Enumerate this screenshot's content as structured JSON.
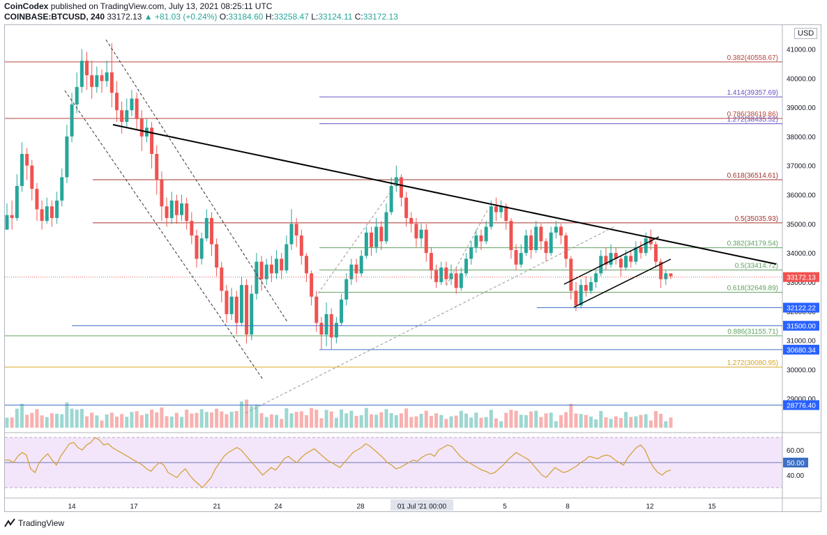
{
  "header": {
    "publisher": "CoinCodex",
    "published_text": "published on TradingView.com, July 13, 2021 08:25:11 UTC",
    "symbol": "COINBASE:BTCUSD, 240",
    "last": "33172.13",
    "change": "▲ +81.03 (+0.24%)",
    "o_label": "O:",
    "o": "33184.60",
    "h_label": "H:",
    "h": "33258.47",
    "l_label": "L:",
    "l": "33124.11",
    "c_label": "C:",
    "c": "33172.13"
  },
  "currency_label": "USD",
  "footer": {
    "brand": "TradingView"
  },
  "colors": {
    "up": "#26a69a",
    "down": "#ef5350",
    "rsi_line": "#d4a13a",
    "rsi_bg": "#f3e6fb"
  },
  "chart_data": {
    "type": "line",
    "title": "",
    "ylim": [
      28000,
      41800
    ],
    "x_ticks": [
      "14",
      "17",
      "21",
      "24",
      "28",
      "01 Jul '21  00:00",
      "5",
      "8",
      "12",
      "15"
    ],
    "y_ticks": [
      "41000.00",
      "40000.00",
      "39000.00",
      "38000.00",
      "37000.00",
      "36000.00",
      "35000.00",
      "34000.00",
      "33000.00",
      "32000.00",
      "31000.00",
      "30000.00",
      "29000.00"
    ],
    "price_labels": [
      {
        "text": "33172.13",
        "value": 33172.13,
        "style": "last"
      },
      {
        "text": "32122.22",
        "value": 32122.22,
        "style": "blue"
      },
      {
        "text": "31500.00",
        "value": 31500.0,
        "style": "blue"
      },
      {
        "text": "30680.34",
        "value": 30680.34,
        "style": "blue"
      },
      {
        "text": "28776.40",
        "value": 28776.4,
        "style": "blue"
      }
    ],
    "fib_levels": [
      {
        "label": "0.382(40558.67)",
        "value": 40558.67,
        "color": "#b5443a"
      },
      {
        "label": "1.414(39357.69)",
        "value": 39357.69,
        "color": "#6a4fc2"
      },
      {
        "label": "0.786(38619.86)",
        "value": 38619.86,
        "color": "#b5443a"
      },
      {
        "label": "1.272(38435.52)",
        "value": 38435.52,
        "color": "#6a4fc2"
      },
      {
        "label": "0.618(36514.61)",
        "value": 36514.61,
        "color": "#a0302a"
      },
      {
        "label": "0.5(35035.93)",
        "value": 35035.93,
        "color": "#a0302a"
      },
      {
        "label": "0.382(34179.54)",
        "value": 34179.54,
        "color": "#5fa05f"
      },
      {
        "label": "0.5(33414.72)",
        "value": 33414.72,
        "color": "#5fa05f"
      },
      {
        "label": "0.618(32649.89)",
        "value": 32649.89,
        "color": "#5fa05f"
      },
      {
        "label": "0.886(31155.71)",
        "value": 31155.71,
        "color": "#5fa05f"
      },
      {
        "label": "1.272(30080.95)",
        "value": 30080.95,
        "color": "#d9a520"
      }
    ],
    "rsi": {
      "ticks": [
        "60.00",
        "50.00",
        "40.00"
      ],
      "level_label": "50.00",
      "values": [
        52,
        52,
        50,
        55,
        58,
        56,
        45,
        42,
        50,
        54,
        57,
        52,
        48,
        55,
        60,
        65,
        66,
        62,
        60,
        64,
        66,
        70,
        68,
        64,
        65,
        62,
        60,
        58,
        56,
        54,
        52,
        50,
        48,
        45,
        43,
        47,
        50,
        48,
        42,
        40,
        38,
        42,
        45,
        40,
        36,
        33,
        30,
        34,
        38,
        45,
        50,
        55,
        58,
        60,
        62,
        60,
        56,
        52,
        48,
        44,
        40,
        43,
        46,
        44,
        48,
        53,
        55,
        52,
        50,
        54,
        57,
        59,
        61,
        58,
        55,
        52,
        50,
        48,
        46,
        50,
        54,
        58,
        60,
        62,
        65,
        63,
        60,
        57,
        54,
        50,
        48,
        45,
        46,
        48,
        50,
        52,
        51,
        54,
        56,
        57,
        55,
        60,
        62,
        64,
        63,
        59,
        55,
        52,
        50,
        48,
        46,
        44,
        43,
        41,
        42,
        45,
        48,
        52,
        55,
        58,
        56,
        54,
        52,
        48,
        44,
        40,
        38,
        42,
        46,
        44,
        42,
        43,
        45,
        47,
        50,
        52,
        55,
        54,
        53,
        55,
        56,
        55,
        52,
        50,
        48,
        54,
        58,
        62,
        64,
        60,
        52,
        46,
        42,
        40,
        43,
        44
      ]
    },
    "candles": [
      [
        34800,
        35300,
        34900,
        35700
      ],
      [
        35300,
        35200,
        34800,
        35800
      ],
      [
        35200,
        36300,
        35100,
        36700
      ],
      [
        36300,
        37400,
        36100,
        37800
      ],
      [
        37400,
        37000,
        36500,
        37600
      ],
      [
        37000,
        36200,
        35800,
        37200
      ],
      [
        36200,
        35500,
        35100,
        36400
      ],
      [
        35500,
        35100,
        34800,
        35800
      ],
      [
        35100,
        35600,
        35000,
        35900
      ],
      [
        35600,
        35200,
        34900,
        35800
      ],
      [
        35200,
        35800,
        35000,
        36100
      ],
      [
        35800,
        36600,
        35600,
        36900
      ],
      [
        36600,
        38000,
        36400,
        38400
      ],
      [
        38000,
        39100,
        37800,
        39500
      ],
      [
        39100,
        39700,
        38800,
        40200
      ],
      [
        39700,
        40600,
        39500,
        41000
      ],
      [
        40600,
        40100,
        39600,
        40900
      ],
      [
        40100,
        39700,
        39300,
        40600
      ],
      [
        39700,
        40100,
        39500,
        40400
      ],
      [
        40100,
        39900,
        39500,
        40300
      ],
      [
        39900,
        40200,
        39700,
        40600
      ],
      [
        40200,
        39500,
        39000,
        41200
      ],
      [
        39500,
        38900,
        38500,
        39900
      ],
      [
        38900,
        38500,
        38100,
        39200
      ],
      [
        38500,
        38900,
        38300,
        39300
      ],
      [
        38900,
        39300,
        38700,
        39600
      ],
      [
        39300,
        38600,
        38200,
        39500
      ],
      [
        38600,
        38000,
        37500,
        38900
      ],
      [
        38000,
        38300,
        37800,
        38600
      ],
      [
        38300,
        37400,
        36900,
        38500
      ],
      [
        37400,
        36500,
        36000,
        37700
      ],
      [
        36500,
        35600,
        35100,
        36800
      ],
      [
        35600,
        35200,
        34900,
        35900
      ],
      [
        35200,
        35800,
        35000,
        36100
      ],
      [
        35800,
        35300,
        35000,
        36000
      ],
      [
        35300,
        35700,
        35100,
        36000
      ],
      [
        35700,
        35100,
        34800,
        35900
      ],
      [
        35100,
        34600,
        34300,
        35400
      ],
      [
        34600,
        33800,
        33500,
        34800
      ],
      [
        33800,
        34500,
        33600,
        34700
      ],
      [
        34500,
        35200,
        34400,
        35500
      ],
      [
        35200,
        34300,
        33900,
        35400
      ],
      [
        34300,
        33500,
        33200,
        34500
      ],
      [
        33500,
        32700,
        32300,
        33700
      ],
      [
        32700,
        31900,
        31600,
        32900
      ],
      [
        31900,
        32500,
        31700,
        32800
      ],
      [
        32500,
        31600,
        31200,
        32700
      ],
      [
        31600,
        32900,
        31500,
        33200
      ],
      [
        32900,
        31200,
        30900,
        33100
      ],
      [
        31200,
        32600,
        31000,
        32900
      ],
      [
        32600,
        33700,
        32400,
        34000
      ],
      [
        33700,
        33100,
        32700,
        33900
      ],
      [
        33100,
        33600,
        32900,
        33800
      ],
      [
        33600,
        33300,
        33000,
        33900
      ],
      [
        33300,
        33800,
        33100,
        34100
      ],
      [
        33800,
        33400,
        33100,
        34000
      ],
      [
        33400,
        34300,
        33300,
        34600
      ],
      [
        34300,
        35000,
        34100,
        35500
      ],
      [
        35000,
        34600,
        34200,
        35200
      ],
      [
        34600,
        33900,
        33600,
        34800
      ],
      [
        33900,
        33300,
        33000,
        34000
      ],
      [
        33300,
        32500,
        32200,
        33400
      ],
      [
        32500,
        31600,
        31300,
        32700
      ],
      [
        31600,
        31200,
        30700,
        31800
      ],
      [
        31200,
        31900,
        30800,
        32300
      ],
      [
        31900,
        31100,
        30700,
        32100
      ],
      [
        31100,
        31600,
        30900,
        31800
      ],
      [
        31600,
        32400,
        31500,
        32600
      ],
      [
        32400,
        33100,
        32200,
        33300
      ],
      [
        33100,
        33600,
        32900,
        33800
      ],
      [
        33600,
        33300,
        33000,
        33800
      ],
      [
        33300,
        33900,
        33200,
        34100
      ],
      [
        33900,
        34700,
        33800,
        34900
      ],
      [
        34700,
        34200,
        33900,
        34900
      ],
      [
        34200,
        34900,
        34000,
        35200
      ],
      [
        34900,
        34400,
        34100,
        35100
      ],
      [
        34400,
        35400,
        34300,
        35700
      ],
      [
        35400,
        36300,
        35300,
        36600
      ],
      [
        36300,
        36600,
        36100,
        37000
      ],
      [
        36600,
        35900,
        35600,
        36700
      ],
      [
        35900,
        35200,
        34900,
        36100
      ],
      [
        35200,
        35000,
        34700,
        35400
      ],
      [
        35000,
        34500,
        34200,
        35200
      ],
      [
        34500,
        34800,
        34200,
        35000
      ],
      [
        34800,
        34000,
        33700,
        35000
      ],
      [
        34000,
        33400,
        33100,
        34200
      ],
      [
        33400,
        33000,
        32800,
        33600
      ],
      [
        33000,
        33500,
        32900,
        33700
      ],
      [
        33500,
        33100,
        32900,
        33700
      ],
      [
        33100,
        33300,
        32900,
        33600
      ],
      [
        33300,
        32800,
        32600,
        33500
      ],
      [
        32800,
        33300,
        32700,
        33500
      ],
      [
        33300,
        33800,
        33200,
        34000
      ],
      [
        33800,
        34200,
        33600,
        34400
      ],
      [
        34200,
        34600,
        34000,
        34800
      ],
      [
        34600,
        34400,
        34100,
        34800
      ],
      [
        34400,
        34900,
        34300,
        35100
      ],
      [
        34900,
        35600,
        34800,
        35800
      ],
      [
        35600,
        35400,
        35100,
        35900
      ],
      [
        35400,
        35600,
        35200,
        35800
      ],
      [
        35600,
        35100,
        34800,
        35700
      ],
      [
        35100,
        34100,
        33800,
        35200
      ],
      [
        34100,
        33600,
        33400,
        34300
      ],
      [
        33600,
        34000,
        33500,
        34300
      ],
      [
        34000,
        34600,
        33900,
        34800
      ],
      [
        34600,
        34100,
        33800,
        34800
      ],
      [
        34100,
        34900,
        34000,
        35100
      ],
      [
        34900,
        34400,
        34100,
        35000
      ],
      [
        34400,
        34000,
        33700,
        34500
      ],
      [
        34000,
        34700,
        33900,
        34900
      ],
      [
        34700,
        34900,
        34500,
        35100
      ],
      [
        34900,
        34600,
        34300,
        35000
      ],
      [
        34600,
        33800,
        33500,
        34700
      ],
      [
        33800,
        32700,
        32400,
        33900
      ],
      [
        32700,
        32200,
        32000,
        33000
      ],
      [
        32200,
        32900,
        32100,
        33100
      ],
      [
        32900,
        32700,
        32500,
        33200
      ],
      [
        32700,
        33000,
        32600,
        33200
      ],
      [
        33000,
        33300,
        32800,
        33400
      ],
      [
        33300,
        33900,
        33200,
        34100
      ],
      [
        33900,
        33600,
        33400,
        34200
      ],
      [
        33600,
        34000,
        33500,
        34300
      ],
      [
        34000,
        33800,
        33600,
        34200
      ],
      [
        33800,
        33500,
        33200,
        33900
      ],
      [
        33500,
        33900,
        33400,
        34100
      ],
      [
        33900,
        33700,
        33500,
        34100
      ],
      [
        33700,
        34200,
        33600,
        34400
      ],
      [
        34200,
        34000,
        33800,
        34400
      ],
      [
        34000,
        34500,
        33900,
        34700
      ],
      [
        34500,
        34300,
        34100,
        34800
      ],
      [
        34300,
        33700,
        33500,
        34400
      ],
      [
        33700,
        33100,
        32800,
        33800
      ],
      [
        33100,
        33300,
        32900,
        33400
      ],
      [
        33300,
        33200,
        33100,
        33300
      ]
    ]
  }
}
